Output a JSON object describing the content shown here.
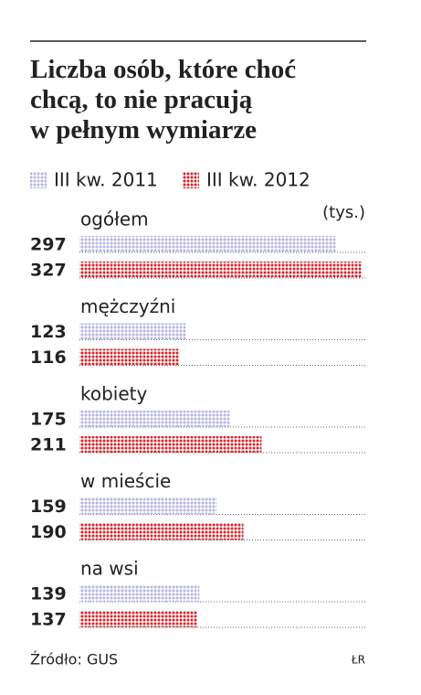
{
  "chart_data": {
    "type": "bar",
    "title": "Liczba osób, które choć chcą, to nie pracują w pełnym wymiarze",
    "unit": "(tys.)",
    "categories": [
      "ogółem",
      "mężczyźni",
      "kobiety",
      "w mieście",
      "na wsi"
    ],
    "series": [
      {
        "name": "III kw. 2011",
        "color": "#b4b4e4",
        "values": [
          297,
          123,
          175,
          159,
          139
        ]
      },
      {
        "name": "III kw. 2012",
        "color": "#d3242b",
        "values": [
          327,
          116,
          211,
          190,
          137
        ]
      }
    ],
    "source": "Źródło: GUS",
    "credit": "ŁR"
  }
}
